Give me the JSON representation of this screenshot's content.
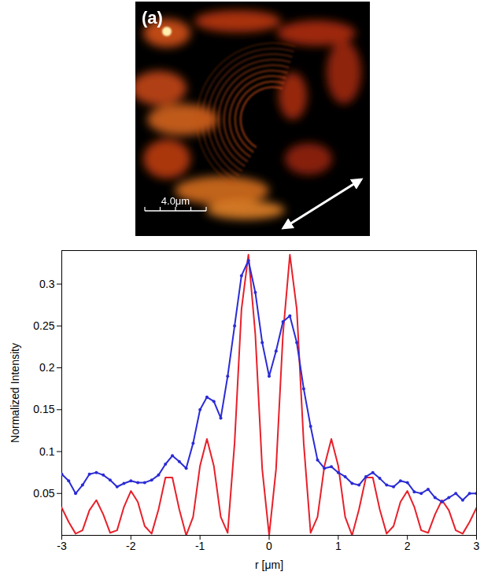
{
  "image": {
    "label": "(a)",
    "scale_bar": "4.0μm"
  },
  "chart_data": {
    "type": "line",
    "x_label": "r [μm]",
    "y_label": "Normalized Intensity",
    "x": [
      -3.0,
      -2.9,
      -2.8,
      -2.7,
      -2.6,
      -2.5,
      -2.4,
      -2.3,
      -2.2,
      -2.1,
      -2.0,
      -1.9,
      -1.8,
      -1.7,
      -1.6,
      -1.5,
      -1.4,
      -1.3,
      -1.2,
      -1.1,
      -1.0,
      -0.9,
      -0.8,
      -0.7,
      -0.6,
      -0.5,
      -0.4,
      -0.3,
      -0.2,
      -0.1,
      0.0,
      0.1,
      0.2,
      0.3,
      0.4,
      0.5,
      0.6,
      0.7,
      0.8,
      0.9,
      1.0,
      1.1,
      1.2,
      1.3,
      1.4,
      1.5,
      1.6,
      1.7,
      1.8,
      1.9,
      2.0,
      2.1,
      2.2,
      2.3,
      2.4,
      2.5,
      2.6,
      2.7,
      2.8,
      2.9,
      3.0
    ],
    "series": [
      {
        "color": "#e8202a",
        "line_style": "solid",
        "values": [
          0.033,
          0.016,
          0.002,
          0.006,
          0.03,
          0.042,
          0.025,
          0.003,
          0.006,
          0.034,
          0.053,
          0.04,
          0.011,
          0.002,
          0.031,
          0.069,
          0.069,
          0.031,
          0.0,
          0.022,
          0.083,
          0.115,
          0.083,
          0.022,
          0.003,
          0.11,
          0.27,
          0.335,
          0.24,
          0.079,
          0,
          0.079,
          0.24,
          0.335,
          0.27,
          0.11,
          0.003,
          0.022,
          0.083,
          0.115,
          0.083,
          0.022,
          0.0,
          0.031,
          0.069,
          0.069,
          0.031,
          0.002,
          0.011,
          0.04,
          0.053,
          0.034,
          0.006,
          0.003,
          0.025,
          0.042,
          0.03,
          0.006,
          0.002,
          0.016,
          0.033
        ]
      },
      {
        "color": "#2b2bd6",
        "line_style": "solid",
        "marker": "dot",
        "values": [
          0.073,
          0.065,
          0.05,
          0.06,
          0.073,
          0.075,
          0.072,
          0.066,
          0.058,
          0.062,
          0.065,
          0.063,
          0.063,
          0.066,
          0.072,
          0.085,
          0.095,
          0.088,
          0.08,
          0.11,
          0.15,
          0.165,
          0.16,
          0.14,
          0.19,
          0.25,
          0.31,
          0.328,
          0.29,
          0.23,
          0.19,
          0.22,
          0.255,
          0.262,
          0.23,
          0.175,
          0.13,
          0.09,
          0.08,
          0.082,
          0.075,
          0.07,
          0.062,
          0.06,
          0.07,
          0.075,
          0.068,
          0.06,
          0.058,
          0.065,
          0.063,
          0.052,
          0.05,
          0.055,
          0.045,
          0.04,
          0.045,
          0.05,
          0.042,
          0.05,
          0.05
        ]
      }
    ],
    "xlim": [
      -3,
      3
    ],
    "xticks": [
      -3,
      -2,
      -1,
      0,
      1,
      2,
      3
    ],
    "ylim": [
      0,
      0.34
    ],
    "yticks": [
      0.05,
      0.1,
      0.15,
      0.2,
      0.25,
      0.3
    ],
    "grid": false
  }
}
